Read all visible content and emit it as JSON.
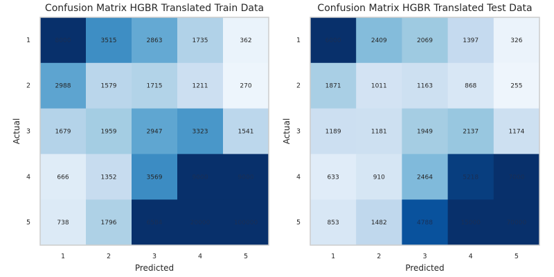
{
  "chart_data": [
    {
      "type": "heatmap",
      "title": "Confusion Matrix HGBR Translated Train Data",
      "xlabel": "Predicted",
      "ylabel": "Actual",
      "x_categories": [
        "1",
        "2",
        "3",
        "4",
        "5"
      ],
      "y_categories": [
        "1",
        "2",
        "3",
        "4",
        "5"
      ],
      "colormap": "Blues",
      "color_range": [
        0,
        5500
      ],
      "values": [
        [
          8000,
          3515,
          2863,
          1735,
          362
        ],
        [
          2988,
          1579,
          1715,
          1211,
          270
        ],
        [
          1679,
          1959,
          2947,
          3323,
          1541
        ],
        [
          666,
          1352,
          3569,
          9000,
          9000
        ],
        [
          738,
          1796,
          6584,
          20000,
          100000
        ]
      ],
      "labels": [
        [
          "8000",
          "3515",
          "2863",
          "1735",
          "362"
        ],
        [
          "2988",
          "1579",
          "1715",
          "1211",
          "270"
        ],
        [
          "1679",
          "1959",
          "2947",
          "3323",
          "1541"
        ],
        [
          "666",
          "1352",
          "3569",
          "9000",
          "9000"
        ],
        [
          "738",
          "1796",
          "6584",
          "20000",
          "100000"
        ]
      ]
    },
    {
      "type": "heatmap",
      "title": "Confusion Matrix HGBR Translated Test Data",
      "xlabel": "Predicted",
      "ylabel": "Actual",
      "x_categories": [
        "1",
        "2",
        "3",
        "4",
        "5"
      ],
      "y_categories": [
        "1",
        "2",
        "3",
        "4",
        "5"
      ],
      "colormap": "Blues",
      "color_range": [
        0,
        5500
      ],
      "values": [
        [
          6000,
          2409,
          2069,
          1397,
          326
        ],
        [
          1871,
          1011,
          1163,
          868,
          255
        ],
        [
          1189,
          1181,
          1949,
          2137,
          1174
        ],
        [
          633,
          910,
          2464,
          5218,
          7000
        ],
        [
          853,
          1482,
          4788,
          15000,
          70000
        ]
      ],
      "labels": [
        [
          "6000",
          "2409",
          "2069",
          "1397",
          "326"
        ],
        [
          "1871",
          "1011",
          "1163",
          "868",
          "255"
        ],
        [
          "1189",
          "1181",
          "1949",
          "2137",
          "1174"
        ],
        [
          "633",
          "910",
          "2464",
          "5218",
          "7000"
        ],
        [
          "853",
          "1482",
          "4788",
          "15000",
          "70000"
        ]
      ]
    }
  ]
}
